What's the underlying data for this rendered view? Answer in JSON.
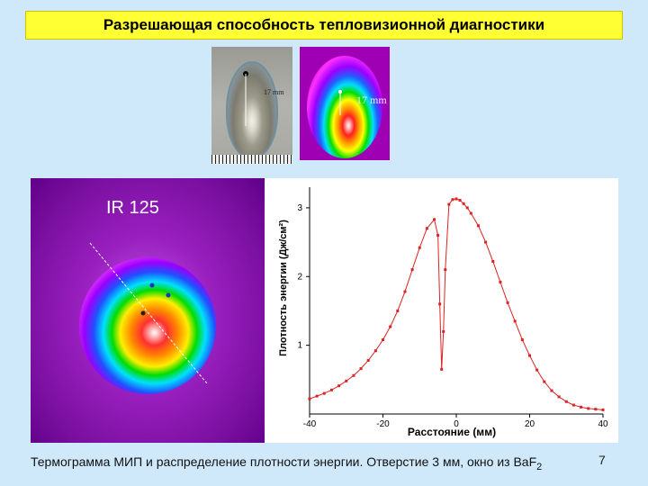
{
  "slide": {
    "title": "Разрешающая способность тепловизионной диагностики",
    "photo_label": "17 mm",
    "thermo_label": "17 mm",
    "big_thermo_label": "IR 125",
    "caption_main": "Термограмма МИП и распределение плотности энергии. Отверстие 3 мм, окно из BaF",
    "caption_sub": "2",
    "page_number": "7"
  },
  "chart_data": {
    "type": "line",
    "xlabel": "Расстояние (мм)",
    "ylabel": "Плотность энергии (Дж/см²)",
    "xlim": [
      -40,
      40
    ],
    "ylim": [
      0,
      3.3
    ],
    "xticks": [
      -40,
      -20,
      0,
      20,
      40
    ],
    "yticks": [
      1,
      2,
      3
    ],
    "color": "#dd2222",
    "series": [
      {
        "x": [
          -40,
          -38,
          -36,
          -34,
          -32,
          -30,
          -28,
          -26,
          -24,
          -22,
          -20,
          -18,
          -16,
          -14,
          -12,
          -10,
          -8,
          -6,
          -5,
          -4.5,
          -4,
          -3.5,
          -3,
          -2,
          -1,
          0,
          1,
          2,
          3,
          4,
          6,
          8,
          10,
          12,
          14,
          16,
          18,
          20,
          22,
          24,
          26,
          28,
          30,
          32,
          34,
          36,
          38,
          40
        ],
        "y": [
          0.22,
          0.26,
          0.3,
          0.35,
          0.41,
          0.48,
          0.56,
          0.66,
          0.78,
          0.92,
          1.08,
          1.27,
          1.5,
          1.78,
          2.1,
          2.42,
          2.7,
          2.83,
          2.6,
          1.6,
          0.65,
          1.2,
          2.1,
          3.05,
          3.12,
          3.13,
          3.11,
          3.06,
          3.0,
          2.92,
          2.74,
          2.5,
          2.22,
          1.92,
          1.62,
          1.35,
          1.08,
          0.85,
          0.64,
          0.47,
          0.34,
          0.25,
          0.18,
          0.13,
          0.1,
          0.08,
          0.07,
          0.06
        ]
      }
    ]
  }
}
